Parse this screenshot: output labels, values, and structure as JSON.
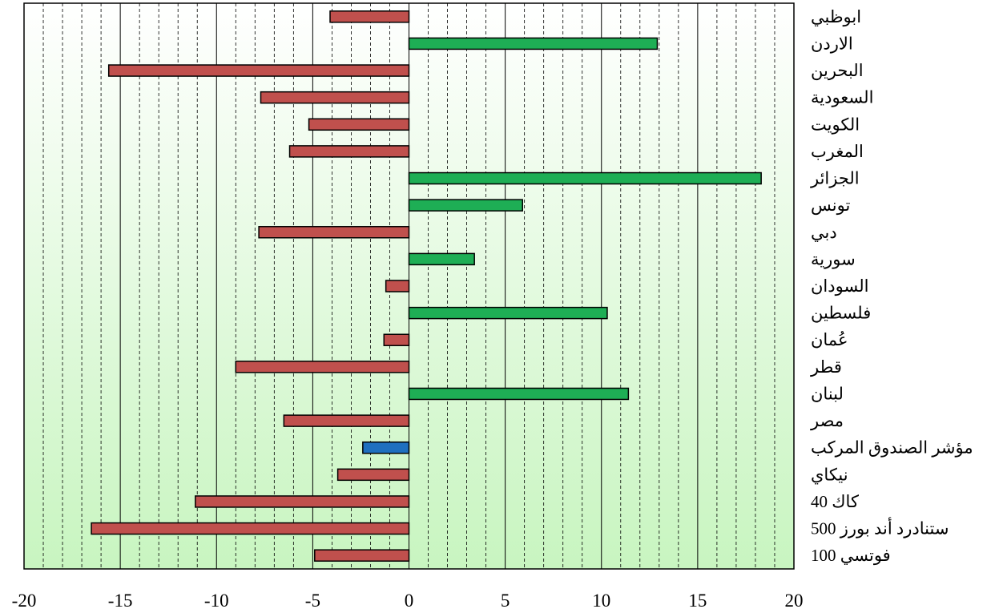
{
  "chart_data": {
    "type": "bar",
    "orientation": "horizontal",
    "title": "",
    "xlabel": "",
    "ylabel": "",
    "xlim": [
      -20,
      20
    ],
    "xticks": [
      -20,
      -15,
      -10,
      -5,
      0,
      5,
      10,
      15,
      20
    ],
    "grid": {
      "vertical": true,
      "step": 1,
      "dashed_minor": true
    },
    "legend": "none",
    "colors": {
      "negative": "#c0504d",
      "positive": "#1eae55",
      "highlight": "#1f6fbf",
      "bg_top": "#ffffff",
      "bg_bottom": "#c8f5c0"
    },
    "categories": [
      "ابوظبي",
      "الاردن",
      "البحرين",
      "السعودية",
      "الكويت",
      "المغرب",
      "الجزائر",
      "تونس",
      "دبي",
      "سورية",
      "السودان",
      "فلسطين",
      "عُمان",
      "قطر",
      "لبنان",
      "مصر",
      "مؤشر الصندوق المركب",
      "نيكاي",
      "كاك 40",
      "ستنادرد أند بورز 500",
      "فوتسي 100"
    ],
    "values": [
      -4.1,
      12.9,
      -15.6,
      -7.7,
      -5.2,
      -6.2,
      18.3,
      5.9,
      -7.8,
      3.4,
      -1.2,
      10.3,
      -1.3,
      -9.0,
      11.4,
      -6.5,
      -2.4,
      -3.7,
      -11.1,
      -16.5,
      -4.9
    ],
    "highlight_index": 16
  }
}
